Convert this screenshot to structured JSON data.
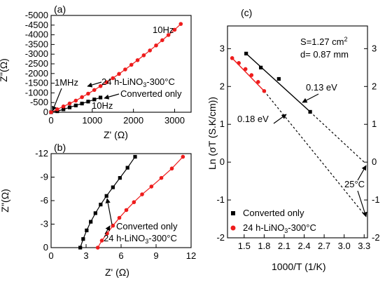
{
  "chart_data": [
    {
      "panel": "(a)",
      "type": "line",
      "xlabel": "Z' (Ω)",
      "ylabel": "Z''(Ω)",
      "xlim": [
        0,
        3400
      ],
      "ylim": [
        0,
        -5000
      ],
      "xticks": [
        0,
        1000,
        2000,
        3000
      ],
      "yticks": [
        0,
        -500,
        -1000,
        -1500,
        -2000,
        -2500,
        -3000,
        -3500,
        -4000,
        -4500,
        -5000
      ],
      "xtick_labels": [
        "0",
        "1000",
        "2000",
        "3000"
      ],
      "ytick_labels": [
        "0",
        "-500",
        "-1000",
        "-1500",
        "-2000",
        "-2500",
        "-3000",
        "-3500",
        "-4000",
        "-4500",
        "-5000"
      ],
      "series": [
        {
          "name": "Converted only",
          "color": "#000000",
          "marker": "square",
          "x": [
            0,
            150,
            300,
            450,
            600,
            750,
            900,
            1050,
            1200
          ],
          "y": [
            0,
            -50,
            -150,
            -250,
            -350,
            -450,
            -550,
            -660,
            -760
          ]
        },
        {
          "name": "24 h-LiNO3-300°C",
          "color": "#ee1c1c",
          "marker": "circle",
          "x": [
            0,
            150,
            300,
            450,
            600,
            750,
            900,
            1050,
            1200,
            1350,
            1500,
            1650,
            1800,
            1950,
            2100,
            2250,
            2400,
            2550,
            2700,
            2850,
            3000,
            3150
          ],
          "y": [
            0,
            -150,
            -300,
            -450,
            -600,
            -780,
            -960,
            -1150,
            -1350,
            -1550,
            -1760,
            -1980,
            -2210,
            -2450,
            -2690,
            -2940,
            -3190,
            -3450,
            -3720,
            -3990,
            -4260,
            -4560
          ]
        }
      ],
      "annotations": [
        "10Hz",
        "1MHz",
        "24 h-LiNO3-300°C",
        "Converted only",
        "10Hz"
      ]
    },
    {
      "panel": "(b)",
      "type": "line",
      "xlabel": "Z' (Ω)",
      "ylabel": "Z''(Ω)",
      "xlim": [
        0,
        12
      ],
      "ylim": [
        0,
        -12
      ],
      "xticks": [
        0,
        3,
        6,
        9,
        12
      ],
      "yticks": [
        0,
        -3,
        -6,
        -9,
        -12
      ],
      "xtick_labels": [
        "0",
        "3",
        "6",
        "9",
        "12"
      ],
      "ytick_labels": [
        "0",
        "-3",
        "-6",
        "-9",
        "-12"
      ],
      "series": [
        {
          "name": "Converted only",
          "color": "#000000",
          "marker": "square",
          "x": [
            2.5,
            2.75,
            3.05,
            3.4,
            3.8,
            4.25,
            4.75,
            5.3,
            5.9,
            6.55,
            7.2
          ],
          "y": [
            0.0,
            -1.1,
            -2.2,
            -3.3,
            -4.4,
            -5.5,
            -6.6,
            -7.7,
            -8.9,
            -10.2,
            -11.6
          ]
        },
        {
          "name": "24 h-LiNO3-300°C",
          "color": "#ee1c1c",
          "marker": "circle",
          "x": [
            4.0,
            4.35,
            4.8,
            5.3,
            5.85,
            6.45,
            7.1,
            7.8,
            8.6,
            9.45,
            10.35,
            11.3
          ],
          "y": [
            0.0,
            -0.9,
            -1.8,
            -2.8,
            -3.8,
            -4.8,
            -5.8,
            -6.8,
            -7.8,
            -8.9,
            -10.1,
            -11.6
          ]
        }
      ],
      "annotations": [
        "Converted only",
        "24 h-LiNO3-300°C"
      ]
    },
    {
      "panel": "(c)",
      "type": "scatter",
      "xlabel": "1000/T (1/K)",
      "ylabel": "Ln (σT (S.K/cm))",
      "xlim": [
        1.25,
        3.35
      ],
      "ylim": [
        -2,
        3.6
      ],
      "xticks": [
        1.5,
        1.8,
        2.1,
        2.4,
        2.7,
        3.0,
        3.3
      ],
      "yticks": [
        3,
        2,
        1,
        0,
        -1,
        -2
      ],
      "xtick_labels": [
        "1.5",
        "1.8",
        "2.1",
        "2.4",
        "2.7",
        "3.0",
        "3.3"
      ],
      "ytick_labels": [
        "3",
        "2",
        "1",
        "0",
        "-1",
        "-2"
      ],
      "series": [
        {
          "name": "Converted only",
          "color": "#000000",
          "marker": "square",
          "x": [
            1.53,
            1.75,
            2.02,
            2.49
          ],
          "y": [
            2.87,
            2.5,
            2.2,
            1.33
          ],
          "fit": {
            "x": [
              1.53,
              2.49
            ],
            "y": [
              2.87,
              1.33
            ]
          }
        },
        {
          "name": "24 h-LiNO3-300°C",
          "color": "#ee1c1c",
          "marker": "circle",
          "x": [
            1.32,
            1.42,
            1.52,
            1.61,
            1.71,
            1.8
          ],
          "y": [
            2.75,
            2.62,
            2.46,
            2.3,
            2.12,
            1.88
          ],
          "fit": {
            "x": [
              1.32,
              1.8
            ],
            "y": [
              2.75,
              1.88
            ]
          }
        }
      ],
      "extrapolations": [
        {
          "x": [
            2.49,
            3.3
          ],
          "y": [
            1.33,
            0.0
          ]
        },
        {
          "x": [
            1.8,
            3.3
          ],
          "y": [
            1.88,
            -1.38
          ]
        }
      ],
      "annotations": [
        "S=1.27 cm2",
        "d= 0.87 mm",
        "0.13 eV",
        "0.18 eV",
        "25°C"
      ]
    }
  ],
  "labels": {
    "panel_a": "(a)",
    "panel_b": "(b)",
    "panel_c": "(c)",
    "a_xlabel_main": "Z'",
    "a_xlabel_unit": "(Ω)",
    "a_ylabel": "Z''(Ω)",
    "b_xlabel_main": "Z'",
    "b_xlabel_unit": "(Ω)",
    "b_ylabel": "Z''(Ω)",
    "c_xlabel": "1000/T (1/K)",
    "c_ylabel": "Ln (σT (S.K/cm))",
    "ann_a_10hz_red": "10Hz",
    "ann_a_1mhz": "1MHz",
    "ann_a_red_series": "24 h-LiNO",
    "ann_a_red_series_sub": "3",
    "ann_a_red_series_tail": "-300°C",
    "ann_a_black_series": "Converted only",
    "ann_a_10hz_black": "10Hz",
    "ann_b_black_series": "Converted only",
    "ann_b_red_series": "24 h-LiNO",
    "ann_b_red_series_sub": "3",
    "ann_b_red_series_tail": "-300°C",
    "ann_c_area": "S=1.27 cm",
    "ann_c_area_sup": "2",
    "ann_c_thickness": "d= 0.87 mm",
    "ann_c_ea_black": "0.13 eV",
    "ann_c_ea_red": "0.18 eV",
    "ann_c_temp": "25°C",
    "legend_black": "Converted only",
    "legend_red": "24 h-LiNO",
    "legend_red_sub": "3",
    "legend_red_tail": "-300°C"
  },
  "colors": {
    "black": "#000000",
    "red": "#ee1c1c"
  }
}
